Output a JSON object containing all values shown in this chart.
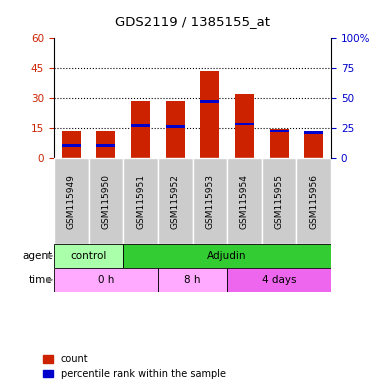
{
  "title": "GDS2119 / 1385155_at",
  "samples": [
    "GSM115949",
    "GSM115950",
    "GSM115951",
    "GSM115952",
    "GSM115953",
    "GSM115954",
    "GSM115955",
    "GSM115956"
  ],
  "count_values": [
    13.5,
    13.5,
    28.5,
    28.5,
    43.5,
    32.0,
    14.5,
    12.5
  ],
  "percentile_values": [
    10.5,
    10.5,
    27.5,
    26.5,
    47.5,
    28.5,
    22.5,
    21.5
  ],
  "ylim_left": [
    0,
    60
  ],
  "ylim_right": [
    0,
    100
  ],
  "yticks_left": [
    0,
    15,
    30,
    45,
    60
  ],
  "ytick_labels_left": [
    "0",
    "15",
    "30",
    "45",
    "60"
  ],
  "yticks_right": [
    0,
    25,
    50,
    75,
    100
  ],
  "ytick_labels_right": [
    "0",
    "25",
    "50",
    "75",
    "100%"
  ],
  "left_tick_color": "#cc2200",
  "right_tick_color": "#0000cc",
  "bar_color_red": "#cc2200",
  "bar_color_blue": "#0000cc",
  "agent_groups": [
    {
      "label": "control",
      "start": 0,
      "end": 2,
      "color": "#aaffaa"
    },
    {
      "label": "Adjudin",
      "start": 2,
      "end": 8,
      "color": "#33cc33"
    }
  ],
  "time_groups": [
    {
      "label": "0 h",
      "start": 0,
      "end": 3,
      "color": "#ffaaff"
    },
    {
      "label": "8 h",
      "start": 3,
      "end": 5,
      "color": "#ffaaff"
    },
    {
      "label": "4 days",
      "start": 5,
      "end": 8,
      "color": "#ee66ee"
    }
  ],
  "agent_label": "agent",
  "time_label": "time",
  "legend_count_label": "count",
  "legend_pct_label": "percentile rank within the sample",
  "sample_box_color": "#cccccc",
  "background_color": "#ffffff"
}
